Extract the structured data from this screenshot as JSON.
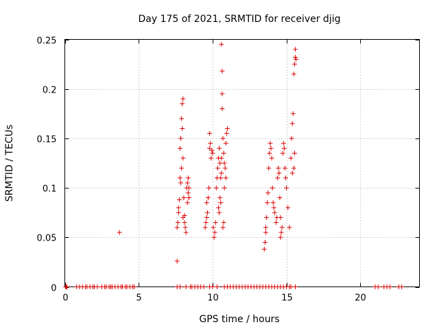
{
  "chart_data": {
    "type": "scatter",
    "title": "Day 175 of 2021, SRMTID for receiver djig",
    "xlabel": "GPS time / hours",
    "ylabel": "SRMTID / TECUs",
    "xlim": [
      0,
      24
    ],
    "ylim": [
      0,
      0.25
    ],
    "xticks": [
      0,
      5,
      10,
      15,
      20
    ],
    "xtick_labels": [
      "0",
      "5",
      "10",
      "15",
      "20"
    ],
    "yticks": [
      0,
      0.05,
      0.1,
      0.15,
      0.2,
      0.25
    ],
    "ytick_labels": [
      "0",
      "0.05",
      "0.1",
      "0.15",
      "0.2",
      "0.25"
    ],
    "grid": true,
    "marker": "+",
    "color": "#dd0000",
    "series": [
      {
        "name": "SRMTID",
        "points": [
          [
            0.05,
            0
          ],
          [
            0.1,
            0
          ],
          [
            0.15,
            0
          ],
          [
            0.8,
            0
          ],
          [
            1.0,
            0
          ],
          [
            1.2,
            0
          ],
          [
            1.4,
            0
          ],
          [
            1.5,
            0
          ],
          [
            1.7,
            0
          ],
          [
            1.9,
            0
          ],
          [
            2.0,
            0
          ],
          [
            2.2,
            0
          ],
          [
            2.5,
            0
          ],
          [
            2.7,
            0
          ],
          [
            2.8,
            0
          ],
          [
            3.0,
            0
          ],
          [
            3.1,
            0
          ],
          [
            3.2,
            0
          ],
          [
            3.4,
            0
          ],
          [
            3.6,
            0
          ],
          [
            3.8,
            0
          ],
          [
            3.9,
            0
          ],
          [
            4.1,
            0
          ],
          [
            4.2,
            0
          ],
          [
            4.4,
            0
          ],
          [
            4.6,
            0
          ],
          [
            4.7,
            0
          ],
          [
            7.6,
            0
          ],
          [
            7.8,
            0
          ],
          [
            8.2,
            0
          ],
          [
            8.5,
            0
          ],
          [
            8.6,
            0
          ],
          [
            8.8,
            0
          ],
          [
            9.0,
            0
          ],
          [
            9.2,
            0
          ],
          [
            9.4,
            0
          ],
          [
            9.8,
            0
          ],
          [
            10.0,
            0
          ],
          [
            10.3,
            0
          ],
          [
            10.8,
            0
          ],
          [
            11.0,
            0
          ],
          [
            11.2,
            0
          ],
          [
            11.4,
            0
          ],
          [
            11.6,
            0
          ],
          [
            11.8,
            0
          ],
          [
            12.0,
            0
          ],
          [
            12.2,
            0
          ],
          [
            12.4,
            0
          ],
          [
            12.6,
            0
          ],
          [
            12.8,
            0
          ],
          [
            13.0,
            0
          ],
          [
            13.2,
            0
          ],
          [
            13.4,
            0
          ],
          [
            13.6,
            0
          ],
          [
            13.8,
            0
          ],
          [
            14.0,
            0
          ],
          [
            14.2,
            0
          ],
          [
            14.4,
            0
          ],
          [
            14.6,
            0
          ],
          [
            14.8,
            0
          ],
          [
            15.0,
            0
          ],
          [
            15.2,
            0
          ],
          [
            15.3,
            0
          ],
          [
            15.6,
            0
          ],
          [
            21.0,
            0
          ],
          [
            21.2,
            0
          ],
          [
            21.6,
            0
          ],
          [
            21.8,
            0
          ],
          [
            22.0,
            0
          ],
          [
            22.6,
            0
          ],
          [
            22.8,
            0
          ],
          [
            3.7,
            0.055
          ],
          [
            7.6,
            0.026
          ],
          [
            7.6,
            0.06
          ],
          [
            7.65,
            0.065
          ],
          [
            7.7,
            0.08
          ],
          [
            7.75,
            0.088
          ],
          [
            7.7,
            0.075
          ],
          [
            7.8,
            0.11
          ],
          [
            7.85,
            0.105
          ],
          [
            7.9,
            0.12
          ],
          [
            7.8,
            0.14
          ],
          [
            7.85,
            0.15
          ],
          [
            7.9,
            0.17
          ],
          [
            7.95,
            0.185
          ],
          [
            8.0,
            0.19
          ],
          [
            7.95,
            0.16
          ],
          [
            8.0,
            0.13
          ],
          [
            8.05,
            0.09
          ],
          [
            8.1,
            0.072
          ],
          [
            8.0,
            0.07
          ],
          [
            8.15,
            0.06
          ],
          [
            8.2,
            0.055
          ],
          [
            8.1,
            0.065
          ],
          [
            8.25,
            0.1
          ],
          [
            8.3,
            0.105
          ],
          [
            8.35,
            0.095
          ],
          [
            8.4,
            0.1
          ],
          [
            8.3,
            0.085
          ],
          [
            8.35,
            0.11
          ],
          [
            8.4,
            0.09
          ],
          [
            9.5,
            0.06
          ],
          [
            9.55,
            0.065
          ],
          [
            9.6,
            0.07
          ],
          [
            9.6,
            0.085
          ],
          [
            9.65,
            0.075
          ],
          [
            9.7,
            0.09
          ],
          [
            9.75,
            0.1
          ],
          [
            9.8,
            0.14
          ],
          [
            9.85,
            0.145
          ],
          [
            9.9,
            0.13
          ],
          [
            9.8,
            0.155
          ],
          [
            9.95,
            0.138
          ],
          [
            10.0,
            0.135
          ],
          [
            10.05,
            0.06
          ],
          [
            10.1,
            0.05
          ],
          [
            10.15,
            0.055
          ],
          [
            10.2,
            0.065
          ],
          [
            10.25,
            0.1
          ],
          [
            10.3,
            0.11
          ],
          [
            10.35,
            0.12
          ],
          [
            10.4,
            0.13
          ],
          [
            10.45,
            0.14
          ],
          [
            10.5,
            0.125
          ],
          [
            10.4,
            0.08
          ],
          [
            10.45,
            0.075
          ],
          [
            10.5,
            0.09
          ],
          [
            10.55,
            0.085
          ],
          [
            10.55,
            0.11
          ],
          [
            10.6,
            0.115
          ],
          [
            10.6,
            0.13
          ],
          [
            10.6,
            0.245
          ],
          [
            10.65,
            0.218
          ],
          [
            10.65,
            0.195
          ],
          [
            10.65,
            0.18
          ],
          [
            10.7,
            0.15
          ],
          [
            10.75,
            0.135
          ],
          [
            10.8,
            0.125
          ],
          [
            10.8,
            0.1
          ],
          [
            10.85,
            0.12
          ],
          [
            10.9,
            0.145
          ],
          [
            10.95,
            0.155
          ],
          [
            11.0,
            0.16
          ],
          [
            10.9,
            0.11
          ],
          [
            10.7,
            0.06
          ],
          [
            10.75,
            0.065
          ],
          [
            13.5,
            0.038
          ],
          [
            13.55,
            0.045
          ],
          [
            13.6,
            0.055
          ],
          [
            13.6,
            0.06
          ],
          [
            13.65,
            0.07
          ],
          [
            13.7,
            0.085
          ],
          [
            13.75,
            0.095
          ],
          [
            13.8,
            0.12
          ],
          [
            13.85,
            0.135
          ],
          [
            13.9,
            0.145
          ],
          [
            13.95,
            0.14
          ],
          [
            14.0,
            0.13
          ],
          [
            14.05,
            0.1
          ],
          [
            14.1,
            0.085
          ],
          [
            14.15,
            0.08
          ],
          [
            14.2,
            0.075
          ],
          [
            14.3,
            0.065
          ],
          [
            14.35,
            0.07
          ],
          [
            14.4,
            0.11
          ],
          [
            14.45,
            0.12
          ],
          [
            14.5,
            0.115
          ],
          [
            14.55,
            0.09
          ],
          [
            14.6,
            0.07
          ],
          [
            14.6,
            0.05
          ],
          [
            14.65,
            0.055
          ],
          [
            14.7,
            0.06
          ],
          [
            14.75,
            0.135
          ],
          [
            14.8,
            0.145
          ],
          [
            14.85,
            0.14
          ],
          [
            14.9,
            0.12
          ],
          [
            14.95,
            0.11
          ],
          [
            15.0,
            0.1
          ],
          [
            15.1,
            0.08
          ],
          [
            15.2,
            0.06
          ],
          [
            15.3,
            0.13
          ],
          [
            15.35,
            0.15
          ],
          [
            15.4,
            0.165
          ],
          [
            15.45,
            0.175
          ],
          [
            15.4,
            0.115
          ],
          [
            15.5,
            0.12
          ],
          [
            15.55,
            0.135
          ],
          [
            15.5,
            0.215
          ],
          [
            15.55,
            0.225
          ],
          [
            15.6,
            0.24
          ],
          [
            15.6,
            0.232
          ],
          [
            15.65,
            0.23
          ]
        ]
      }
    ]
  }
}
